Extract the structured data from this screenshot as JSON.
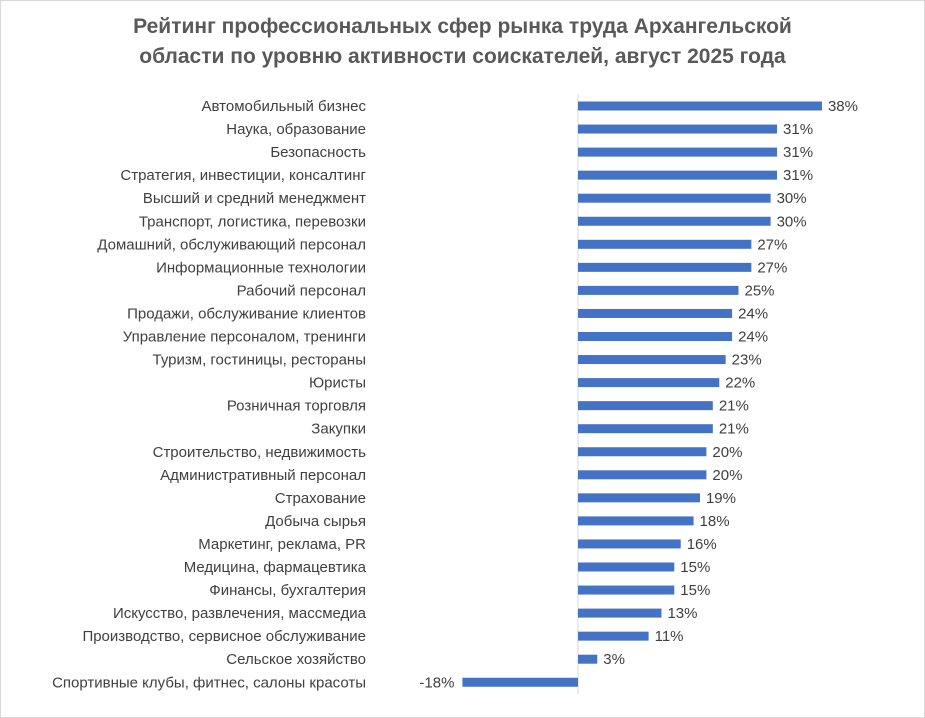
{
  "chart_data": {
    "type": "bar",
    "orientation": "horizontal",
    "title": "Рейтинг профессиональных сфер рынка труда Архангельской области по уровню активности соискателей, август 2025 года",
    "title_lines": [
      "Рейтинг профессиональных сфер рынка труда Архангельской",
      "области по уровню активности соискателей, август 2025 года"
    ],
    "categories": [
      "Автомобильный бизнес",
      "Наука, образование",
      "Безопасность",
      "Стратегия, инвестиции, консалтинг",
      "Высший и средний менеджмент",
      "Транспорт, логистика, перевозки",
      "Домашний, обслуживающий персонал",
      "Информационные технологии",
      "Рабочий персонал",
      "Продажи, обслуживание клиентов",
      "Управление персоналом, тренинги",
      "Туризм, гостиницы, рестораны",
      "Юристы",
      "Розничная торговля",
      "Закупки",
      "Строительство, недвижимость",
      "Административный персонал",
      "Страхование",
      "Добыча сырья",
      "Маркетинг, реклама, PR",
      "Медицина, фармацевтика",
      "Финансы, бухгалтерия",
      "Искусство, развлечения, массмедиа",
      "Производство, сервисное обслуживание",
      "Сельское хозяйство",
      "Спортивные клубы, фитнес, салоны красоты"
    ],
    "values": [
      38,
      31,
      31,
      31,
      30,
      30,
      27,
      27,
      25,
      24,
      24,
      23,
      22,
      21,
      21,
      20,
      20,
      19,
      18,
      16,
      15,
      15,
      13,
      11,
      3,
      -18
    ],
    "value_labels": [
      "38%",
      "31%",
      "31%",
      "31%",
      "30%",
      "30%",
      "27%",
      "27%",
      "25%",
      "24%",
      "24%",
      "23%",
      "22%",
      "21%",
      "21%",
      "20%",
      "20%",
      "19%",
      "18%",
      "16%",
      "15%",
      "15%",
      "13%",
      "11%",
      "3%",
      "-18%"
    ],
    "unit": "%",
    "xlim": [
      -18,
      38
    ],
    "grid": false,
    "legend": "none",
    "bar_color": "#4472c4",
    "axis_color": "#d9d9d9",
    "text_color": "#404040",
    "title_color": "#595959"
  }
}
